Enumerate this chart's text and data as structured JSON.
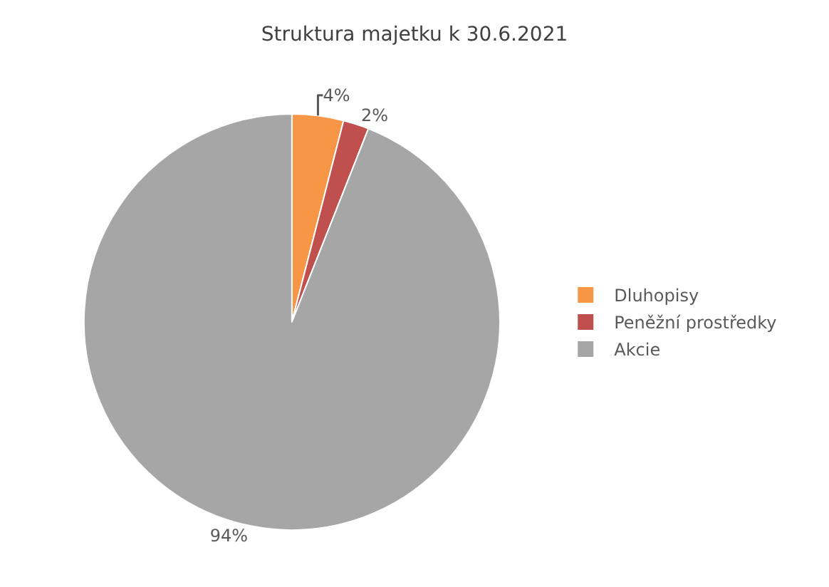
{
  "chart_data": {
    "type": "pie",
    "title": "Struktura majetku k 30.6.2021",
    "categories": [
      "Dluhopisy",
      "Peněžní prostředky",
      "Akcie"
    ],
    "values": [
      4,
      2,
      94
    ],
    "colors": [
      "#f79646",
      "#c0504d",
      "#a6a6a6"
    ],
    "value_labels": [
      "4%",
      "2%",
      "94%"
    ],
    "legend": "right"
  }
}
